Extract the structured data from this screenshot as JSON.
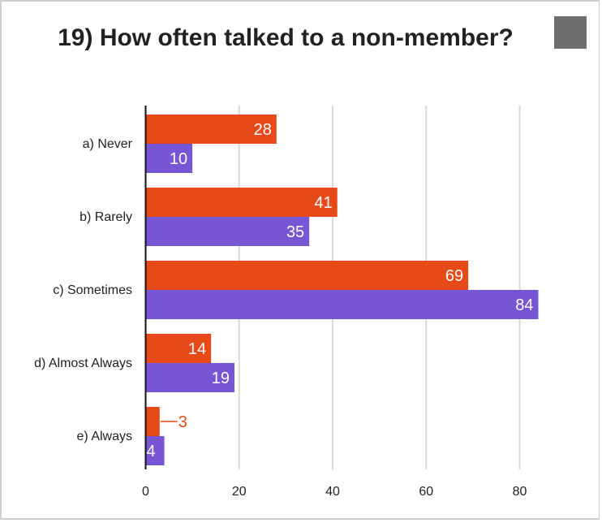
{
  "title": "19) How often talked to a non-member?",
  "colors": {
    "series_a": "#e64a19",
    "series_b": "#7756d6",
    "grid": "#d9d9d9",
    "axis": "#111111"
  },
  "icons": {
    "menu": "menu-icon"
  },
  "chart_data": {
    "type": "bar",
    "orientation": "horizontal",
    "title": "19) How often talked to a non-member?",
    "categories": [
      "a) Never",
      "b) Rarely",
      "c) Sometimes",
      "d) Almost Always",
      "e) Always"
    ],
    "series": [
      {
        "values": [
          28,
          41,
          69,
          14,
          3
        ],
        "color": "#e64a19"
      },
      {
        "values": [
          10,
          35,
          84,
          19,
          4
        ],
        "color": "#7756d6"
      }
    ],
    "xticks": [
      0,
      20,
      40,
      60,
      80
    ],
    "xlim": [
      0,
      90
    ],
    "grid": true,
    "legend": "none"
  }
}
